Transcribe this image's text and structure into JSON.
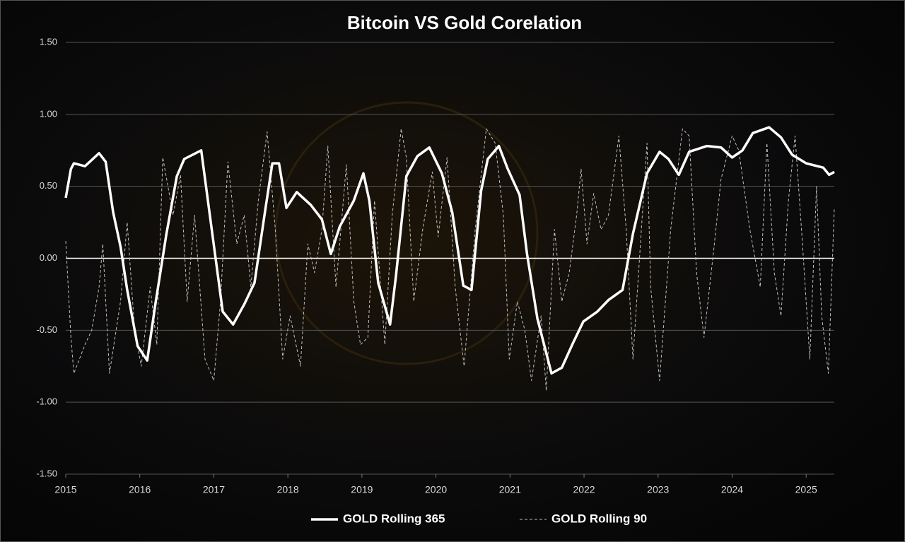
{
  "chart_data": {
    "type": "line",
    "title": "Bitcoin VS Gold Corelation",
    "xlim": [
      2015,
      2025.38
    ],
    "xticks": [
      2015,
      2016,
      2017,
      2018,
      2019,
      2020,
      2021,
      2022,
      2023,
      2024,
      2025
    ],
    "ylim": [
      -1.5,
      1.5
    ],
    "yticks": [
      {
        "value": -1.5,
        "label": "-1.50"
      },
      {
        "value": -1,
        "label": "-1.00"
      },
      {
        "value": -0.5,
        "label": "-0.50"
      },
      {
        "value": 0,
        "label": "0.00"
      },
      {
        "value": 0.5,
        "label": "0.50"
      },
      {
        "value": 1,
        "label": "1.00"
      },
      {
        "value": 1.5,
        "label": "1.50"
      }
    ],
    "grid": true,
    "legend": "bottom",
    "series": [
      {
        "name": "GOLD Rolling 365",
        "color": "#ffffff",
        "style": "solid",
        "x": [
          2015.0,
          2015.07,
          2015.11,
          2015.26,
          2015.45,
          2015.54,
          2015.64,
          2015.74,
          2015.83,
          2015.97,
          2016.1,
          2016.21,
          2016.36,
          2016.5,
          2016.6,
          2016.83,
          2016.98,
          2017.12,
          2017.26,
          2017.41,
          2017.55,
          2017.69,
          2017.79,
          2017.88,
          2017.98,
          2018.12,
          2018.31,
          2018.46,
          2018.58,
          2018.7,
          2018.89,
          2019.02,
          2019.1,
          2019.22,
          2019.38,
          2019.46,
          2019.6,
          2019.75,
          2019.91,
          2020.08,
          2020.22,
          2020.37,
          2020.48,
          2020.61,
          2020.7,
          2020.85,
          2020.97,
          2021.13,
          2021.23,
          2021.37,
          2021.56,
          2021.7,
          2021.85,
          2021.99,
          2022.18,
          2022.33,
          2022.52,
          2022.66,
          2022.85,
          2023.02,
          2023.14,
          2023.28,
          2023.42,
          2023.66,
          2023.85,
          2024.0,
          2024.14,
          2024.28,
          2024.5,
          2024.66,
          2024.81,
          2025.0,
          2025.23,
          2025.31,
          2025.38
        ],
        "values": [
          0.42,
          0.62,
          0.66,
          0.64,
          0.73,
          0.67,
          0.32,
          0.08,
          -0.22,
          -0.61,
          -0.71,
          -0.32,
          0.17,
          0.57,
          0.69,
          0.75,
          0.17,
          -0.37,
          -0.46,
          -0.32,
          -0.17,
          0.32,
          0.66,
          0.66,
          0.35,
          0.46,
          0.37,
          0.27,
          0.03,
          0.22,
          0.4,
          0.59,
          0.4,
          -0.17,
          -0.46,
          -0.12,
          0.57,
          0.71,
          0.77,
          0.59,
          0.32,
          -0.19,
          -0.22,
          0.47,
          0.69,
          0.78,
          0.62,
          0.44,
          0.03,
          -0.42,
          -0.8,
          -0.76,
          -0.59,
          -0.44,
          -0.37,
          -0.29,
          -0.22,
          0.17,
          0.59,
          0.74,
          0.69,
          0.58,
          0.74,
          0.78,
          0.77,
          0.7,
          0.75,
          0.87,
          0.91,
          0.84,
          0.72,
          0.66,
          0.63,
          0.58,
          0.6
        ]
      },
      {
        "name": "GOLD Rolling 90",
        "color": "#bfbfbf",
        "style": "dashed",
        "x": [
          2015.0,
          2015.07,
          2015.11,
          2015.26,
          2015.35,
          2015.45,
          2015.5,
          2015.59,
          2015.74,
          2015.83,
          2015.93,
          2016.02,
          2016.14,
          2016.23,
          2016.31,
          2016.45,
          2016.55,
          2016.64,
          2016.74,
          2016.88,
          2017.0,
          2017.09,
          2017.19,
          2017.31,
          2017.41,
          2017.5,
          2017.6,
          2017.72,
          2017.83,
          2017.93,
          2018.03,
          2018.17,
          2018.27,
          2018.36,
          2018.46,
          2018.54,
          2018.65,
          2018.79,
          2018.89,
          2018.98,
          2019.08,
          2019.17,
          2019.31,
          2019.41,
          2019.53,
          2019.6,
          2019.7,
          2019.82,
          2019.95,
          2020.03,
          2020.15,
          2020.26,
          2020.38,
          2020.53,
          2020.68,
          2020.8,
          2020.91,
          2020.99,
          2021.1,
          2021.2,
          2021.29,
          2021.42,
          2021.49,
          2021.6,
          2021.7,
          2021.8,
          2021.9,
          2021.96,
          2022.04,
          2022.13,
          2022.23,
          2022.33,
          2022.47,
          2022.57,
          2022.66,
          2022.85,
          2022.9,
          2023.02,
          2023.17,
          2023.33,
          2023.42,
          2023.52,
          2023.62,
          2023.76,
          2023.85,
          2024.0,
          2024.09,
          2024.24,
          2024.38,
          2024.47,
          2024.57,
          2024.66,
          2024.76,
          2024.85,
          2024.95,
          2025.05,
          2025.14,
          2025.21,
          2025.3,
          2025.38
        ],
        "values": [
          0.12,
          -0.55,
          -0.8,
          -0.6,
          -0.5,
          -0.2,
          0.1,
          -0.8,
          -0.3,
          0.25,
          -0.5,
          -0.75,
          -0.2,
          -0.6,
          0.7,
          0.3,
          0.58,
          -0.3,
          0.3,
          -0.7,
          -0.85,
          -0.3,
          0.67,
          0.1,
          0.3,
          -0.2,
          0.4,
          0.88,
          0.2,
          -0.7,
          -0.4,
          -0.75,
          0.1,
          -0.1,
          0.2,
          0.78,
          -0.2,
          0.65,
          -0.3,
          -0.6,
          -0.55,
          0.4,
          -0.6,
          0.3,
          0.9,
          0.7,
          -0.3,
          0.2,
          0.6,
          0.15,
          0.7,
          -0.2,
          -0.75,
          0.2,
          0.9,
          0.8,
          0.3,
          -0.7,
          -0.3,
          -0.5,
          -0.85,
          -0.4,
          -0.92,
          0.2,
          -0.3,
          -0.1,
          0.3,
          0.62,
          0.1,
          0.45,
          0.2,
          0.3,
          0.85,
          0.2,
          -0.7,
          0.8,
          -0.2,
          -0.85,
          0.2,
          0.9,
          0.85,
          -0.1,
          -0.55,
          0.1,
          0.55,
          0.85,
          0.75,
          0.2,
          -0.2,
          0.8,
          -0.1,
          -0.4,
          0.4,
          0.85,
          0.1,
          -0.7,
          0.5,
          -0.4,
          -0.8,
          0.35
        ]
      }
    ]
  }
}
